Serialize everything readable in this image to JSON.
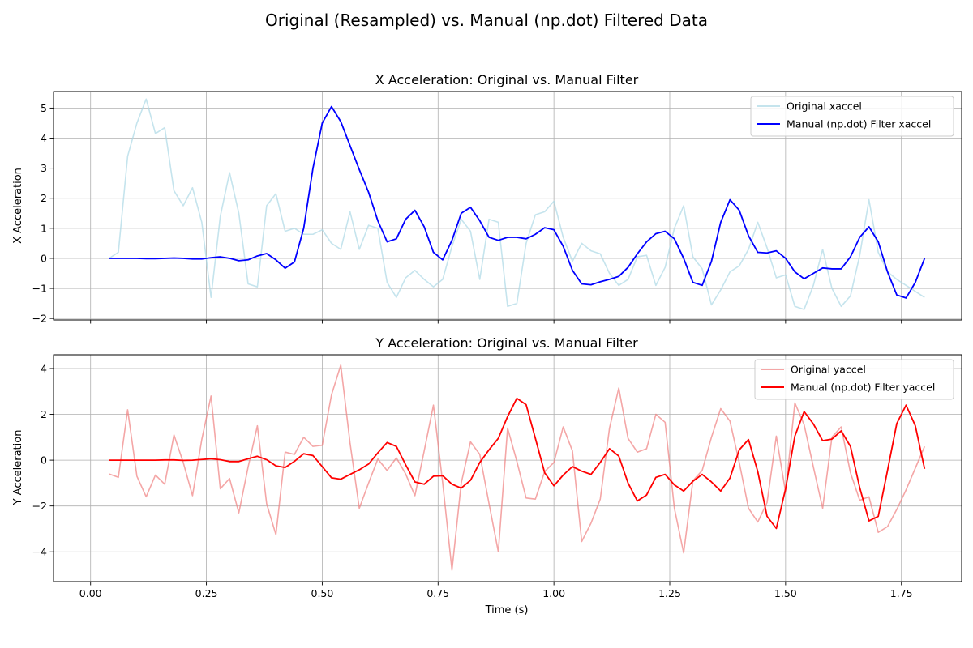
{
  "figure": {
    "suptitle": "Original (Resampled) vs. Manual (np.dot) Filtered Data"
  },
  "chart_data": [
    {
      "type": "line",
      "title": "X Acceleration: Original vs. Manual Filter",
      "xlabel": "",
      "ylabel": "X Acceleration",
      "xlim": [
        -0.08,
        1.88
      ],
      "ylim": [
        -2.05,
        5.55
      ],
      "xticks": [
        0.0,
        0.25,
        0.5,
        0.75,
        1.0,
        1.25,
        1.5,
        1.75
      ],
      "xtick_labels": [
        "",
        "",
        "",
        "",
        "",
        "",
        "",
        ""
      ],
      "yticks": [
        -2,
        -1,
        0,
        1,
        2,
        3,
        4,
        5
      ],
      "ytick_labels": [
        "−2",
        "−1",
        "0",
        "1",
        "2",
        "3",
        "4",
        "5"
      ],
      "grid": true,
      "legend_position": "top-right",
      "series": [
        {
          "name": "Original xaccel",
          "color": "#add8e6",
          "alpha": 0.7,
          "x": [
            0.04,
            0.06,
            0.08,
            0.1,
            0.12,
            0.14,
            0.16,
            0.18,
            0.2,
            0.22,
            0.24,
            0.26,
            0.28,
            0.3,
            0.32,
            0.34,
            0.36,
            0.38,
            0.4,
            0.42,
            0.44,
            0.46,
            0.48,
            0.5,
            0.52,
            0.54,
            0.56,
            0.58,
            0.6,
            0.62,
            0.64,
            0.66,
            0.68,
            0.7,
            0.72,
            0.74,
            0.76,
            0.78,
            0.8,
            0.82,
            0.84,
            0.86,
            0.88,
            0.9,
            0.92,
            0.94,
            0.96,
            0.98,
            1.0,
            1.02,
            1.04,
            1.06,
            1.08,
            1.1,
            1.12,
            1.14,
            1.16,
            1.18,
            1.2,
            1.22,
            1.24,
            1.26,
            1.28,
            1.3,
            1.32,
            1.34,
            1.36,
            1.38,
            1.4,
            1.42,
            1.44,
            1.46,
            1.48,
            1.5,
            1.52,
            1.54,
            1.56,
            1.58,
            1.6,
            1.62,
            1.64,
            1.66,
            1.68,
            1.7,
            1.72,
            1.74,
            1.76,
            1.78,
            1.8
          ],
          "y": [
            0.0,
            0.2,
            3.4,
            4.5,
            5.3,
            4.15,
            4.35,
            2.25,
            1.75,
            2.35,
            1.2,
            -1.3,
            1.4,
            2.85,
            1.5,
            -0.85,
            -0.95,
            1.75,
            2.15,
            0.9,
            1.0,
            0.8,
            0.8,
            0.95,
            0.5,
            0.3,
            1.55,
            0.3,
            1.1,
            1.0,
            -0.8,
            -1.3,
            -0.65,
            -0.4,
            -0.7,
            -0.95,
            -0.7,
            0.4,
            1.3,
            0.9,
            -0.7,
            1.3,
            1.2,
            -1.6,
            -1.5,
            0.5,
            1.45,
            1.55,
            1.9,
            0.7,
            -0.1,
            0.5,
            0.25,
            0.15,
            -0.5,
            -0.9,
            -0.7,
            0.05,
            0.1,
            -0.9,
            -0.3,
            1.0,
            1.75,
            0.05,
            -0.35,
            -1.55,
            -1.05,
            -0.45,
            -0.25,
            0.3,
            1.2,
            0.35,
            -0.65,
            -0.55,
            -1.6,
            -1.7,
            -0.9,
            0.3,
            -1.0,
            -1.6,
            -1.25,
            0.1,
            1.95,
            0.2,
            -0.45,
            -0.7,
            -0.9,
            -1.1,
            -1.3
          ]
        },
        {
          "name": "Manual (np.dot) Filter xaccel",
          "color": "#0000ff",
          "alpha": 1,
          "x": [
            0.04,
            0.06,
            0.08,
            0.1,
            0.12,
            0.14,
            0.16,
            0.18,
            0.2,
            0.22,
            0.24,
            0.26,
            0.28,
            0.3,
            0.32,
            0.34,
            0.36,
            0.38,
            0.4,
            0.42,
            0.44,
            0.46,
            0.48,
            0.5,
            0.52,
            0.54,
            0.56,
            0.58,
            0.6,
            0.62,
            0.64,
            0.66,
            0.68,
            0.7,
            0.72,
            0.74,
            0.76,
            0.78,
            0.8,
            0.82,
            0.84,
            0.86,
            0.88,
            0.9,
            0.92,
            0.94,
            0.96,
            0.98,
            1.0,
            1.02,
            1.04,
            1.06,
            1.08,
            1.1,
            1.12,
            1.14,
            1.16,
            1.18,
            1.2,
            1.22,
            1.24,
            1.26,
            1.28,
            1.3,
            1.32,
            1.34,
            1.36,
            1.38,
            1.4,
            1.42,
            1.44,
            1.46,
            1.48,
            1.5,
            1.52,
            1.54,
            1.56,
            1.58,
            1.6,
            1.62,
            1.64,
            1.66,
            1.68,
            1.7,
            1.72,
            1.74,
            1.76,
            1.78,
            1.8
          ],
          "y": [
            0.0,
            0.0,
            0.0,
            0.0,
            -0.01,
            -0.01,
            0.0,
            0.01,
            0.0,
            -0.02,
            -0.02,
            0.02,
            0.05,
            0.0,
            -0.08,
            -0.05,
            0.08,
            0.16,
            -0.05,
            -0.33,
            -0.12,
            1.0,
            3.0,
            4.5,
            5.05,
            4.55,
            3.75,
            2.95,
            2.2,
            1.25,
            0.55,
            0.65,
            1.3,
            1.6,
            1.05,
            0.2,
            -0.05,
            0.6,
            1.5,
            1.7,
            1.25,
            0.7,
            0.6,
            0.7,
            0.7,
            0.65,
            0.8,
            1.02,
            0.95,
            0.4,
            -0.4,
            -0.85,
            -0.88,
            -0.78,
            -0.7,
            -0.6,
            -0.3,
            0.15,
            0.55,
            0.82,
            0.9,
            0.65,
            0.0,
            -0.8,
            -0.9,
            -0.1,
            1.2,
            1.95,
            1.6,
            0.75,
            0.2,
            0.18,
            0.25,
            0.0,
            -0.45,
            -0.68,
            -0.5,
            -0.32,
            -0.35,
            -0.35,
            0.05,
            0.7,
            1.05,
            0.55,
            -0.45,
            -1.22,
            -1.32,
            -0.8,
            0.0
          ]
        }
      ]
    },
    {
      "type": "line",
      "title": "Y Acceleration: Original vs. Manual Filter",
      "xlabel": "Time (s)",
      "ylabel": "Y Acceleration",
      "xlim": [
        -0.08,
        1.88
      ],
      "ylim": [
        -5.3,
        4.6
      ],
      "xticks": [
        0.0,
        0.25,
        0.5,
        0.75,
        1.0,
        1.25,
        1.5,
        1.75
      ],
      "xtick_labels": [
        "0.00",
        "0.25",
        "0.50",
        "0.75",
        "1.00",
        "1.25",
        "1.50",
        "1.75"
      ],
      "yticks": [
        -4,
        -2,
        0,
        2,
        4
      ],
      "ytick_labels": [
        "−4",
        "−2",
        "0",
        "2",
        "4"
      ],
      "grid": true,
      "legend_position": "top-right",
      "series": [
        {
          "name": "Original yaccel",
          "color": "#f08080",
          "alpha": 0.7,
          "x": [
            0.04,
            0.06,
            0.08,
            0.1,
            0.12,
            0.14,
            0.16,
            0.18,
            0.2,
            0.22,
            0.24,
            0.26,
            0.28,
            0.3,
            0.32,
            0.34,
            0.36,
            0.38,
            0.4,
            0.42,
            0.44,
            0.46,
            0.48,
            0.5,
            0.52,
            0.54,
            0.56,
            0.58,
            0.6,
            0.62,
            0.64,
            0.66,
            0.68,
            0.7,
            0.72,
            0.74,
            0.76,
            0.78,
            0.8,
            0.82,
            0.84,
            0.86,
            0.88,
            0.9,
            0.92,
            0.94,
            0.96,
            0.98,
            1.0,
            1.02,
            1.04,
            1.06,
            1.08,
            1.1,
            1.12,
            1.14,
            1.16,
            1.18,
            1.2,
            1.22,
            1.24,
            1.26,
            1.28,
            1.3,
            1.32,
            1.34,
            1.36,
            1.38,
            1.4,
            1.42,
            1.44,
            1.46,
            1.48,
            1.5,
            1.52,
            1.54,
            1.56,
            1.58,
            1.6,
            1.62,
            1.64,
            1.66,
            1.68,
            1.7,
            1.72,
            1.74,
            1.76,
            1.78,
            1.8
          ],
          "y": [
            -0.6,
            -0.75,
            2.2,
            -0.7,
            -1.6,
            -0.65,
            -1.05,
            1.1,
            -0.1,
            -1.55,
            0.9,
            2.8,
            -1.25,
            -0.8,
            -2.3,
            -0.3,
            1.5,
            -1.9,
            -3.25,
            0.35,
            0.25,
            1.0,
            0.6,
            0.65,
            2.85,
            4.15,
            0.75,
            -2.1,
            -1.0,
            0.05,
            -0.45,
            0.1,
            -0.6,
            -1.55,
            0.4,
            2.4,
            -1.0,
            -4.8,
            -1.0,
            0.8,
            0.25,
            -1.9,
            -4.0,
            1.4,
            -0.05,
            -1.65,
            -1.7,
            -0.5,
            -0.1,
            1.45,
            0.4,
            -3.55,
            -2.75,
            -1.7,
            1.4,
            3.15,
            0.95,
            0.35,
            0.5,
            2.0,
            1.65,
            -2.1,
            -4.05,
            -0.9,
            -0.45,
            1.0,
            2.25,
            1.7,
            -0.1,
            -2.1,
            -2.7,
            -1.85,
            1.05,
            -1.4,
            2.5,
            1.55,
            -0.3,
            -2.1,
            1.0,
            1.45,
            -0.55,
            -1.75,
            -1.6,
            -3.15,
            -2.9,
            -2.15,
            -1.3,
            -0.35,
            0.6
          ]
        },
        {
          "name": "Manual (np.dot) Filter yaccel",
          "color": "#ff0000",
          "alpha": 1,
          "x": [
            0.04,
            0.06,
            0.08,
            0.1,
            0.12,
            0.14,
            0.16,
            0.18,
            0.2,
            0.22,
            0.24,
            0.26,
            0.28,
            0.3,
            0.32,
            0.34,
            0.36,
            0.38,
            0.4,
            0.42,
            0.44,
            0.46,
            0.48,
            0.5,
            0.52,
            0.54,
            0.56,
            0.58,
            0.6,
            0.62,
            0.64,
            0.66,
            0.68,
            0.7,
            0.72,
            0.74,
            0.76,
            0.78,
            0.8,
            0.82,
            0.84,
            0.86,
            0.88,
            0.9,
            0.92,
            0.94,
            0.96,
            0.98,
            1.0,
            1.02,
            1.04,
            1.06,
            1.08,
            1.1,
            1.12,
            1.14,
            1.16,
            1.18,
            1.2,
            1.22,
            1.24,
            1.26,
            1.28,
            1.3,
            1.32,
            1.34,
            1.36,
            1.38,
            1.4,
            1.42,
            1.44,
            1.46,
            1.48,
            1.5,
            1.52,
            1.54,
            1.56,
            1.58,
            1.6,
            1.62,
            1.64,
            1.66,
            1.68,
            1.7,
            1.72,
            1.74,
            1.76,
            1.78,
            1.8
          ],
          "y": [
            0.0,
            0.0,
            0.0,
            0.0,
            0.0,
            0.0,
            0.01,
            0.01,
            -0.01,
            0.0,
            0.03,
            0.06,
            0.02,
            -0.06,
            -0.06,
            0.06,
            0.17,
            0.02,
            -0.25,
            -0.32,
            -0.05,
            0.28,
            0.2,
            -0.28,
            -0.77,
            -0.83,
            -0.62,
            -0.42,
            -0.17,
            0.32,
            0.77,
            0.6,
            -0.2,
            -0.95,
            -1.05,
            -0.7,
            -0.68,
            -1.05,
            -1.22,
            -0.88,
            -0.1,
            0.45,
            0.95,
            1.9,
            2.7,
            2.42,
            0.95,
            -0.55,
            -1.12,
            -0.65,
            -0.28,
            -0.48,
            -0.62,
            -0.1,
            0.5,
            0.18,
            -1.0,
            -1.78,
            -1.52,
            -0.75,
            -0.62,
            -1.08,
            -1.35,
            -0.92,
            -0.62,
            -0.95,
            -1.35,
            -0.78,
            0.45,
            0.9,
            -0.5,
            -2.45,
            -2.98,
            -1.25,
            1.05,
            2.12,
            1.58,
            0.85,
            0.92,
            1.28,
            0.6,
            -1.2,
            -2.65,
            -2.45,
            -0.45,
            1.6,
            2.4,
            1.5,
            -0.38
          ]
        }
      ]
    }
  ]
}
